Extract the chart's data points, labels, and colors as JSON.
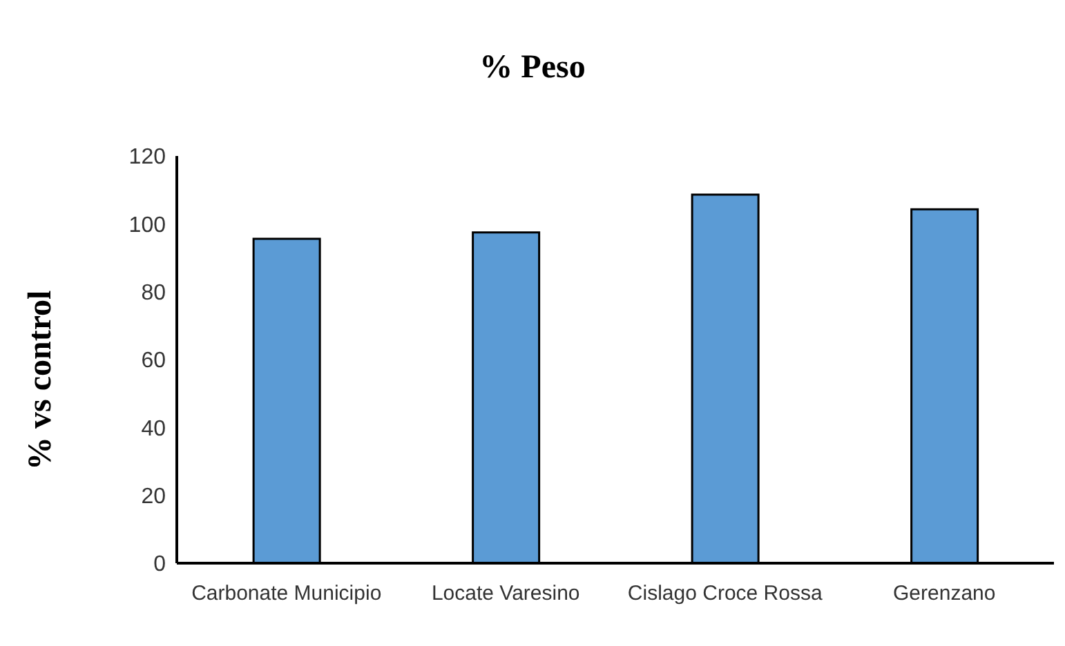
{
  "chart_data": {
    "type": "bar",
    "title": "% Peso",
    "ylabel": "% vs control",
    "categories": [
      "Carbonate Municipio",
      "Locate Varesino",
      "Cislago Croce Rossa",
      "Gerenzano"
    ],
    "values": [
      95.6,
      97.5,
      108.6,
      104.3
    ],
    "color": "#5b9bd5",
    "ylim": [
      0,
      120
    ],
    "yticks": [
      0,
      20,
      40,
      60,
      80,
      100,
      120
    ],
    "grid": false,
    "legend": false
  }
}
